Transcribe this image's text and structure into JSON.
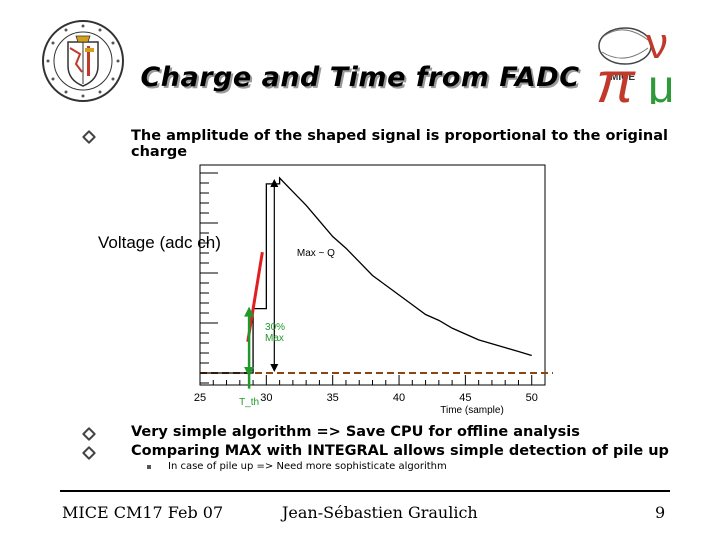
{
  "slide": {
    "title": "Charge and Time from FADC",
    "bullet1": "The amplitude of the shaped signal is proportional to the original charge",
    "bullet2": "Very simple algorithm => Save CPU for offline analysis",
    "bullet3": "Comparing MAX with INTEGRAL allows simple detection of pile up",
    "sub_bullet": "In case of pile up => Need more sophisticate algorithm"
  },
  "footer": {
    "left": "MICE CM17 Feb 07",
    "center": "Jean-Sébastien Graulich",
    "page": "9"
  },
  "logos": {
    "left": "geneva-crest-logo",
    "right": "mice-pi-nu-mu-logo",
    "right_label": "MICE"
  },
  "chart_data": {
    "type": "line",
    "xlabel": "Time (sample)",
    "ylabel": "Voltage (adc ch)",
    "x_ticks": [
      "25",
      "30",
      "35",
      "40",
      "45",
      "50"
    ],
    "xlim": [
      25,
      51
    ],
    "x": [
      25,
      28.5,
      29,
      30,
      31,
      32,
      33,
      34,
      35,
      36,
      37,
      38,
      39,
      40,
      41,
      42,
      43,
      44,
      45,
      46,
      47,
      48,
      49,
      50
    ],
    "y": [
      0,
      0,
      0.33,
      0.97,
      1.0,
      0.93,
      0.86,
      0.78,
      0.7,
      0.64,
      0.57,
      0.5,
      0.45,
      0.4,
      0.35,
      0.3,
      0.27,
      0.23,
      0.2,
      0.17,
      0.15,
      0.13,
      0.11,
      0.09
    ],
    "annotations": {
      "max": "Max ~ Q",
      "threshold": "30%\nMax",
      "threshold_line1": "30%",
      "threshold_line2": "Max",
      "time": "T_th"
    },
    "colors": {
      "signal": "#000000",
      "rise_fit": "#e02020",
      "threshold_marker": "#1f9a2a",
      "baseline": "#8b4513"
    }
  }
}
